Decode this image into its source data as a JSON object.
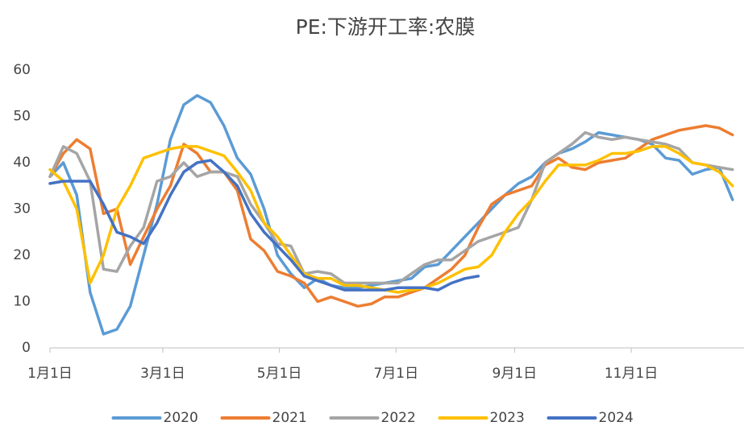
{
  "chart_data": {
    "type": "line",
    "title": "PE:下游开工率:农膜",
    "x": [
      0,
      7,
      14,
      21,
      28,
      35,
      42,
      49,
      56,
      63,
      70,
      77,
      84,
      91,
      98,
      105,
      112,
      119,
      126,
      133,
      140,
      147,
      154,
      161,
      168,
      175,
      182,
      189,
      196,
      203,
      210,
      217,
      224,
      231,
      238,
      245,
      252,
      259,
      266,
      273,
      280,
      287,
      294,
      301,
      308,
      315,
      322,
      329,
      336,
      343,
      350,
      357
    ],
    "xlim": [
      0,
      363
    ],
    "xticks": [
      {
        "value": 0,
        "label": "1月1日"
      },
      {
        "value": 59,
        "label": "3月1日"
      },
      {
        "value": 120,
        "label": "5月1日"
      },
      {
        "value": 181,
        "label": "7月1日"
      },
      {
        "value": 243,
        "label": "9月1日"
      },
      {
        "value": 304,
        "label": "11月1日"
      }
    ],
    "ylim": [
      0,
      60
    ],
    "yticks": [
      0,
      10,
      20,
      30,
      40,
      50,
      60
    ],
    "grid": false,
    "legend": "bottom",
    "series": [
      {
        "name": "2020",
        "color": "#5b9bd5",
        "values": [
          37,
          40,
          33,
          12,
          3,
          4,
          9,
          20,
          31,
          45,
          52.5,
          54.5,
          53,
          48,
          41,
          37.5,
          30,
          20,
          16,
          13,
          15,
          13.5,
          13,
          13,
          13.5,
          14,
          14.5,
          15,
          17.5,
          18,
          21,
          24,
          27,
          30,
          33,
          35.5,
          37,
          40,
          42,
          43,
          44.5,
          46.5,
          46,
          45.5,
          45,
          44,
          41,
          40.5,
          37.5,
          38.5,
          39,
          32
        ]
      },
      {
        "name": "2021",
        "color": "#ed7d31",
        "values": [
          37,
          42,
          45,
          43,
          29,
          30,
          18,
          24,
          30,
          35,
          44,
          42,
          38,
          38,
          34,
          23.5,
          21,
          16.5,
          15.5,
          14,
          10,
          11,
          10,
          9,
          9.5,
          11,
          11,
          12,
          13,
          15,
          17,
          20,
          26,
          31,
          33,
          34,
          35,
          39.5,
          41,
          39,
          38.5,
          40,
          40.5,
          41,
          43,
          45,
          46,
          47,
          47.5,
          48,
          47.5,
          46
        ]
      },
      {
        "name": "2022",
        "color": "#a5a5a5",
        "values": [
          37,
          43.5,
          42,
          36,
          17,
          16.5,
          22,
          26,
          36,
          37,
          40,
          37,
          38,
          38,
          37,
          31,
          27,
          22.5,
          22,
          16,
          16.5,
          16,
          14,
          14,
          14,
          14,
          14,
          16,
          18,
          19,
          19,
          21,
          23,
          24,
          25,
          26,
          32,
          40,
          42,
          44,
          46.5,
          45.5,
          45,
          45.5,
          45,
          44.5,
          44,
          43,
          40,
          39.5,
          39,
          38.5
        ]
      },
      {
        "name": "2023",
        "color": "#ffc000",
        "values": [
          38.5,
          36,
          30,
          14,
          20,
          30,
          35,
          41,
          42,
          43,
          43.5,
          43.5,
          42.5,
          41.5,
          38,
          34,
          27,
          24,
          20,
          16,
          15,
          15,
          13.5,
          13.5,
          13,
          12.5,
          12,
          12.5,
          13,
          14,
          15.5,
          17,
          17.5,
          20,
          25,
          29,
          32,
          36,
          39.5,
          39.5,
          39.5,
          40.5,
          42,
          42,
          42.5,
          43.5,
          43.5,
          42,
          40,
          39.5,
          38,
          35
        ]
      },
      {
        "name": "2024",
        "color": "#4472c4",
        "values": [
          35.5,
          36,
          36,
          36,
          31,
          25,
          24,
          22.5,
          27,
          33,
          38,
          40,
          40.5,
          38,
          35,
          29,
          25,
          22,
          19,
          15.5,
          14.5,
          13.5,
          12.5,
          12.5,
          12.5,
          12.5,
          13,
          13,
          13,
          12.5,
          14,
          15,
          15.5,
          null,
          null,
          null,
          null,
          null,
          null,
          null,
          null,
          null,
          null,
          null,
          null,
          null,
          null,
          null,
          null,
          null,
          null,
          null
        ]
      }
    ]
  }
}
